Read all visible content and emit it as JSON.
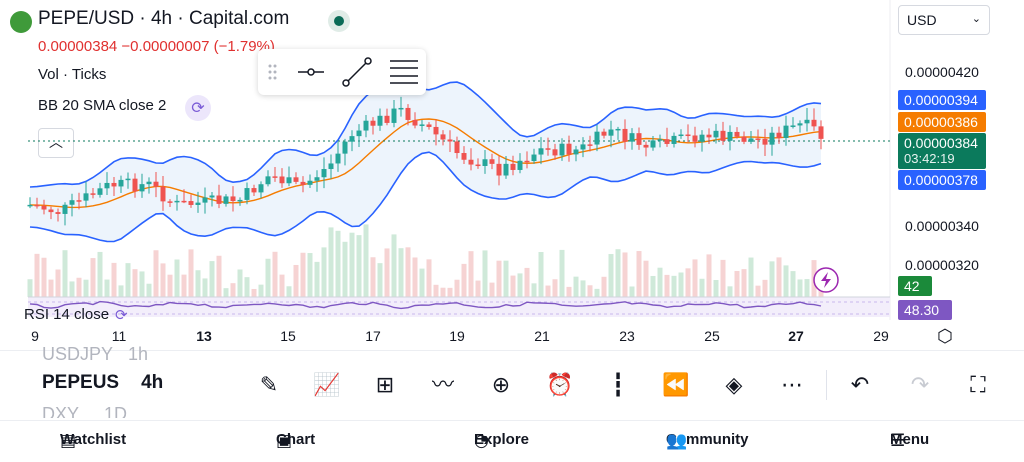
{
  "header": {
    "title": "PEPE/USD · 4h · Capital.com",
    "price": "0.00000384",
    "change": "−0.00000007 (−1.79%)",
    "currency": "USD"
  },
  "legends": {
    "volume": "Vol · Ticks",
    "bb": "BB 20 SMA close 2",
    "rsi": "RSI 14 close"
  },
  "price_axis": [
    "0.00000420",
    "0.00000340",
    "0.00000320"
  ],
  "price_tags": {
    "upper": "0.00000394",
    "basis": "0.00000386",
    "current": "0.00000384",
    "countdown": "03:42:19",
    "lower": "0.00000378",
    "volume": "42",
    "rsi": "48.30"
  },
  "time_axis": [
    "9",
    "11",
    "13",
    "15",
    "17",
    "19",
    "21",
    "23",
    "25",
    "27",
    "29"
  ],
  "symbols": {
    "above": "USDJPY",
    "above_tf": "1h",
    "current": "PEPEUS",
    "current_tf": "4h",
    "below": "DXY",
    "below_tf": "1D"
  },
  "toolbar_icons": [
    "pencil-icon",
    "indicators-icon",
    "layout-grid-icon",
    "chart-type-icon",
    "add-icon",
    "alert-icon",
    "candles-icon",
    "replay-icon",
    "layers-icon",
    "more-icon",
    "undo-icon",
    "redo-icon",
    "fullscreen-icon"
  ],
  "nav": {
    "watchlist": "Watchlist",
    "chart": "Chart",
    "explore": "Explore",
    "community": "Community",
    "menu": "Menu"
  },
  "colors": {
    "up": "#26a69a",
    "down": "#ef5350",
    "band": "#2962ff",
    "basis": "#f57c00",
    "rsi": "#7e57c2",
    "current": "#0b7a5c"
  },
  "chart_data": {
    "type": "candlestick",
    "indicator": "Bollinger Bands (20, 2)",
    "x_ticks": [
      "9",
      "11",
      "13",
      "15",
      "17",
      "19",
      "21",
      "23",
      "25",
      "27",
      "29"
    ],
    "y_ticks": [
      4.2e-06,
      3.4e-06,
      3.2e-06
    ],
    "last_close": 3.84e-06,
    "bb_upper": 3.94e-06,
    "bb_basis": 3.86e-06,
    "bb_lower": 3.78e-06,
    "rsi": 48.3,
    "volume_last": 42
  }
}
